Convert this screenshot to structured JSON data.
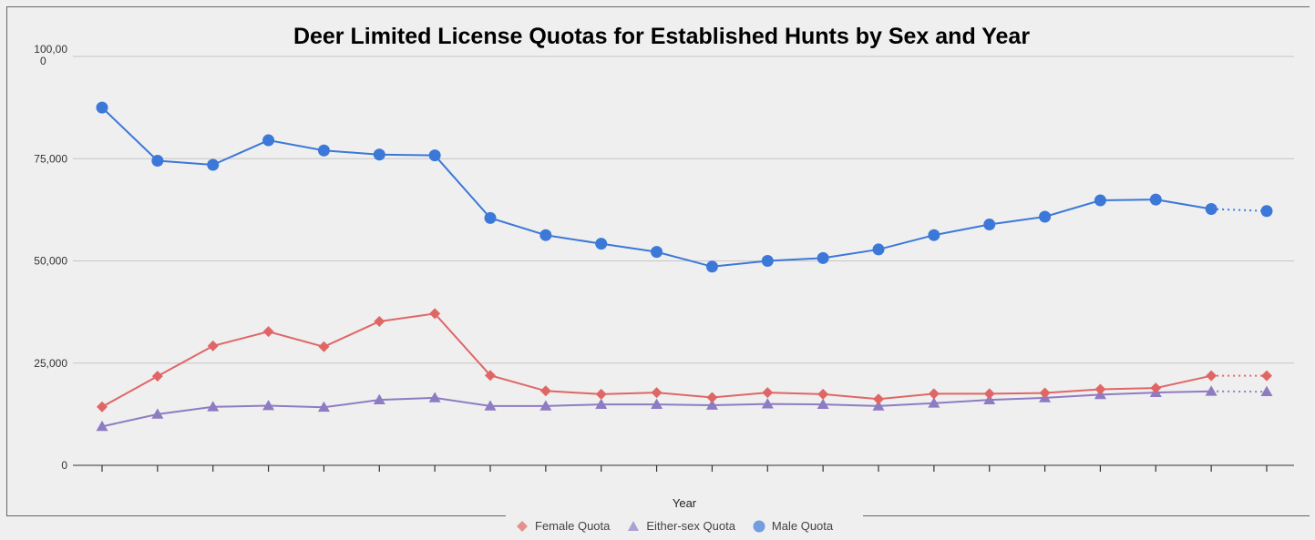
{
  "chart_data": {
    "type": "line",
    "title": "Deer Limited License Quotas for Established Hunts by Sex and Year",
    "xlabel": "Year",
    "ylabel": "",
    "ylim": [
      0,
      100000
    ],
    "y_ticks": [
      {
        "value": 0,
        "label": "0"
      },
      {
        "value": 25000,
        "label": "25,000"
      },
      {
        "value": 50000,
        "label": "50,000"
      },
      {
        "value": 75000,
        "label": "75,000"
      },
      {
        "value": 100000,
        "label": "100,00 0"
      }
    ],
    "x": [
      1,
      2,
      3,
      4,
      5,
      6,
      7,
      8,
      9,
      10,
      11,
      12,
      13,
      14,
      15,
      16,
      17,
      18,
      19,
      20,
      21,
      22
    ],
    "grid": true,
    "legend_position": "bottom",
    "dotted_last_segment": true,
    "series": [
      {
        "name": "Male Quota",
        "color": "#3c78d8",
        "marker": "circle",
        "values": [
          87500,
          74500,
          73500,
          79500,
          77000,
          76000,
          75800,
          60500,
          56300,
          54200,
          52200,
          48600,
          50000,
          50700,
          52800,
          56300,
          58900,
          60800,
          64800,
          65000,
          62700,
          62200
        ]
      },
      {
        "name": "Female Quota",
        "color": "#e06666",
        "marker": "diamond",
        "values": [
          14300,
          21800,
          29200,
          32700,
          29000,
          35200,
          37100,
          22000,
          18200,
          17400,
          17800,
          16600,
          17800,
          17400,
          16200,
          17500,
          17500,
          17700,
          18600,
          18900,
          21900,
          21900
        ]
      },
      {
        "name": "Either-sex Quota",
        "color": "#8e7cc3",
        "marker": "triangle",
        "values": [
          9500,
          12500,
          14300,
          14600,
          14200,
          16000,
          16500,
          14500,
          14500,
          14900,
          14900,
          14700,
          15000,
          14900,
          14500,
          15200,
          16000,
          16500,
          17300,
          17800,
          18100,
          18000
        ]
      }
    ],
    "legend_order": [
      "Female Quota",
      "Either-sex Quota",
      "Male Quota"
    ]
  }
}
